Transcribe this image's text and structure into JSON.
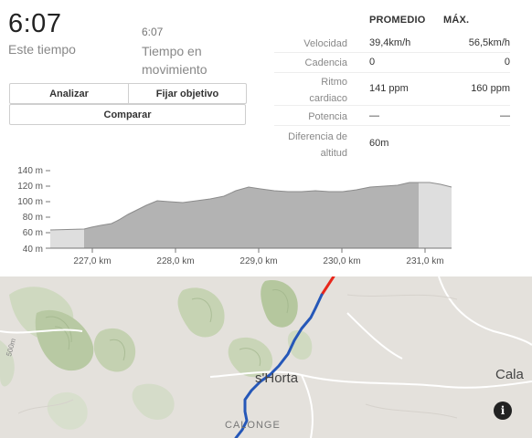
{
  "summary": {
    "elapsed_time": "6:07",
    "elapsed_label": "Este tiempo",
    "moving_time": "6:07",
    "moving_label": "Tiempo en movimiento"
  },
  "actions": {
    "analyze": "Analizar",
    "set_goal": "Fijar objetivo",
    "compare": "Comparar"
  },
  "stats": {
    "header_avg": "PROMEDIO",
    "header_max": "MÁX.",
    "rows": [
      {
        "label": "Velocidad",
        "avg": "39,4km/h",
        "max": "56,5km/h"
      },
      {
        "label": "Cadencia",
        "avg": "0",
        "max": "0"
      },
      {
        "label": "Ritmo cardiaco",
        "avg": "141 ppm",
        "max": "160 ppm"
      },
      {
        "label": "Potencia",
        "avg": "—",
        "max": "—"
      },
      {
        "label": "Diferencia de altitud",
        "avg": "60m",
        "max": ""
      }
    ]
  },
  "elevation": {
    "y_ticks": [
      "140 m",
      "120 m",
      "100 m",
      "80 m",
      "60 m",
      "40 m"
    ],
    "x_ticks": [
      "227,0 km",
      "228,0 km",
      "229,0 km",
      "230,0 km",
      "231,0 km"
    ],
    "colors": {
      "selected": "#b3b3b3",
      "unselected": "#dedede",
      "line": "#8c8c8c"
    }
  },
  "map": {
    "labels": {
      "town": "s'Horta",
      "village": "CALONGE",
      "east_town": "Cala",
      "road": "500m"
    },
    "route_colors": {
      "start": "#e8261b",
      "main": "#2557b8"
    },
    "info_icon": "info-icon"
  }
}
